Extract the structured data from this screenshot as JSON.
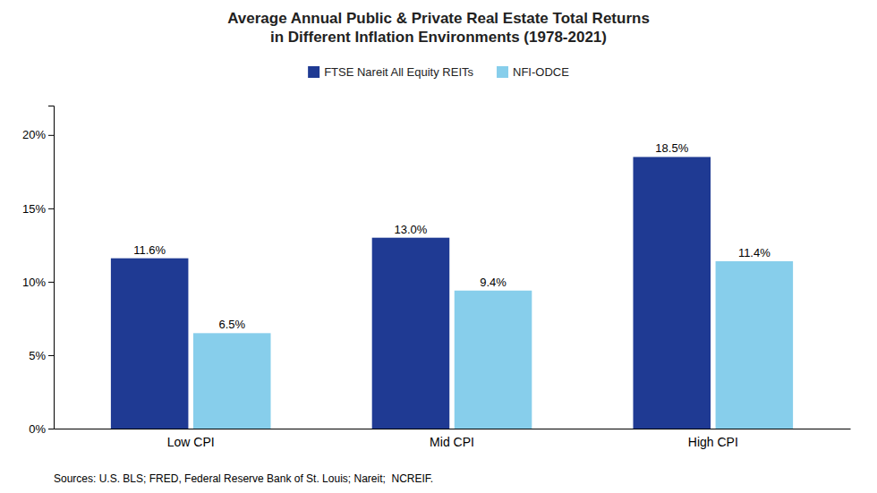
{
  "chart_data": {
    "type": "bar",
    "title": "Average Annual Public & Private Real Estate Total Returns\nin Different Inflation Environments (1978-2021)",
    "categories": [
      "Low CPI",
      "Mid CPI",
      "High CPI"
    ],
    "series": [
      {
        "name": "FTSE Nareit All Equity REITs",
        "color": "#1F3A93",
        "values": [
          11.6,
          13.0,
          18.5
        ],
        "value_labels": [
          "11.6%",
          "13.0%",
          "18.5%"
        ]
      },
      {
        "name": "NFI-ODCE",
        "color": "#87CEEB",
        "values": [
          6.5,
          9.4,
          11.4
        ],
        "value_labels": [
          "6.5%",
          "9.4%",
          "11.4%"
        ]
      }
    ],
    "ylim": [
      0,
      22
    ],
    "yticks": [
      {
        "value": 0,
        "label": "0%"
      },
      {
        "value": 5,
        "label": "5%"
      },
      {
        "value": 10,
        "label": "10%"
      },
      {
        "value": 15,
        "label": "15%"
      },
      {
        "value": 20,
        "label": "20%"
      }
    ],
    "grid": false,
    "legend": "top",
    "data_labels": true,
    "annotations": [
      "Sources: U.S. BLS; FRED, Federal Reserve Bank of St. Louis; Nareit;  NCREIF."
    ]
  }
}
